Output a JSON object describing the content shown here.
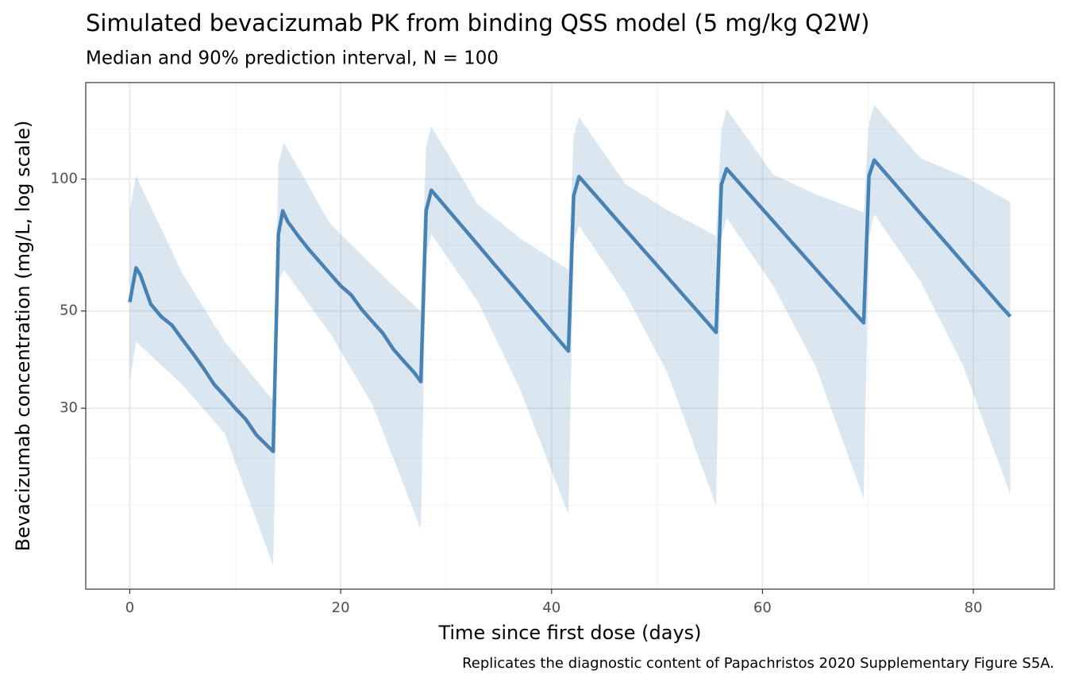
{
  "chart_data": {
    "type": "line",
    "title": "Simulated bevacizumab PK from binding QSS model (5 mg/kg Q2W)",
    "subtitle": "Median and 90% prediction interval, N = 100",
    "x_label": "Time since first dose (days)",
    "y_label": "Bevacizumab concentration (mg/L, log scale)",
    "caption": "Replicates the diagnostic content of Papachristos 2020 Supplementary Figure S5A.",
    "y_scale": "log",
    "grid": true,
    "xlim": [
      -4.175,
      87.675
    ],
    "ylim": [
      11.6,
      166
    ],
    "xticks": [
      0,
      20,
      40,
      60,
      80
    ],
    "yticks": [
      30,
      50,
      100
    ],
    "minor_xticks": [
      10,
      30,
      50,
      70
    ],
    "minor_yticks": [
      130,
      70.7,
      38.7,
      23.1,
      18
    ],
    "x": [
      0,
      0.6,
      1,
      2,
      3,
      4,
      5,
      6,
      7,
      8,
      9,
      10,
      11,
      12,
      13,
      13.6,
      14.1,
      14.5,
      15,
      16,
      17,
      18,
      19,
      20,
      21,
      22,
      23,
      24,
      25,
      26,
      27,
      27.6,
      28.1,
      28.6,
      29.6,
      30.6,
      31.6,
      32.6,
      33.6,
      34.6,
      35.6,
      36.6,
      37.6,
      38.6,
      39.6,
      40.6,
      41.6,
      42.1,
      42.6,
      43.6,
      44.6,
      45.6,
      46.6,
      47.6,
      48.6,
      49.6,
      50.6,
      51.6,
      52.6,
      53.6,
      54.6,
      55.6,
      56.1,
      56.6,
      57.6,
      58.6,
      59.6,
      60.6,
      61.6,
      62.6,
      63.6,
      64.6,
      65.6,
      66.6,
      67.6,
      68.6,
      69.6,
      70.1,
      70.6,
      71.6,
      72.6,
      73.6,
      74.6,
      75.6,
      76.6,
      77.6,
      78.6,
      79.6,
      80.6,
      81.6,
      82.6,
      83.5
    ],
    "series": [
      {
        "color": "#4682b4",
        "values": [
          52.4,
          62.7,
          60.5,
          51.8,
          48.5,
          46.4,
          43,
          40,
          37,
          34,
          32,
          30,
          28.3,
          26.1,
          24.7,
          23.9,
          74.9,
          84.6,
          79.8,
          74,
          69,
          64.8,
          60.8,
          57.1,
          54.4,
          50.4,
          47.3,
          44.5,
          40.9,
          38.4,
          36.1,
          34.5,
          84.6,
          94.3,
          88.4,
          82.8,
          77.6,
          72.7,
          68.1,
          63.8,
          59.8,
          56.1,
          52.5,
          49.2,
          46.1,
          43.2,
          40.5,
          91.6,
          101.3,
          95.1,
          89.3,
          83.8,
          78.7,
          73.9,
          69.4,
          65.2,
          61.2,
          57.5,
          54.0,
          50.7,
          47.6,
          44.7,
          97,
          105.6,
          99.2,
          93.2,
          87.6,
          82.3,
          77.3,
          72.6,
          68.2,
          64.1,
          60.2,
          56.6,
          53.2,
          50.0,
          47.0,
          101.7,
          110.5,
          103.6,
          97.2,
          91.2,
          85.5,
          80.2,
          75.2,
          70.6,
          66.2,
          62.1,
          58.3,
          54.7,
          51.3,
          48.6
        ]
      }
    ],
    "band": {
      "color": "#4682b4",
      "x": [
        0,
        0.6,
        5,
        9,
        13.6,
        14.1,
        14.6,
        19,
        23,
        27.6,
        28.1,
        28.6,
        33,
        37,
        41.6,
        42.1,
        42.6,
        47,
        51,
        55.6,
        56.1,
        56.6,
        61,
        65,
        69.6,
        70.1,
        70.6,
        75,
        79,
        83.5
      ],
      "upper": [
        85,
        101.7,
        60.8,
        42.6,
        31.2,
        107.8,
        121.2,
        79.1,
        63.4,
        49.8,
        118.7,
        131.7,
        87.5,
        73.4,
        62.1,
        125.3,
        138.6,
        97.5,
        84.9,
        74.1,
        129,
        144.4,
        102.5,
        92.4,
        83.9,
        134.5,
        147.4,
        111.5,
        101.7,
        88.6
      ],
      "lower": [
        34.6,
        42.6,
        33.9,
        26.3,
        13.1,
        58.4,
        62.1,
        44.5,
        30.6,
        15.9,
        67.5,
        74.9,
        52.6,
        33.2,
        17.2,
        71.9,
        78.2,
        54.8,
        36.1,
        18.0,
        73.4,
        81.5,
        57.2,
        37.6,
        18.7,
        73.4,
        83.2,
        58.4,
        37.6,
        19.1
      ]
    }
  }
}
